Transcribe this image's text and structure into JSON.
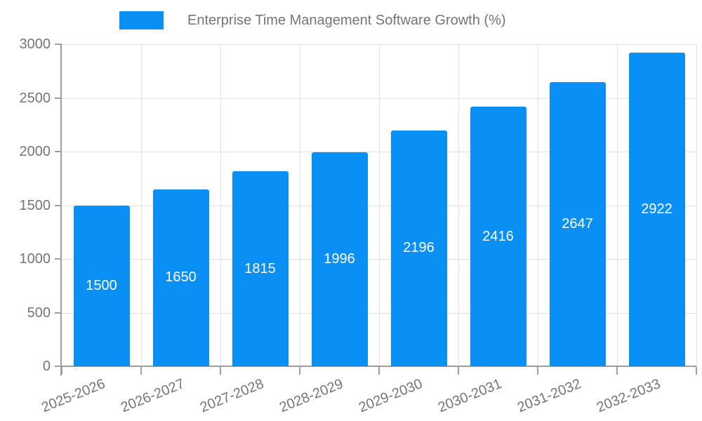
{
  "legend": {
    "label": "Enterprise Time Management Software Growth (%)"
  },
  "chart_data": {
    "type": "bar",
    "title": "Enterprise Time Management Software Growth (%)",
    "categories": [
      "2025-2026",
      "2026-2027",
      "2027-2028",
      "2028-2029",
      "2029-2030",
      "2030-2031",
      "2031-2032",
      "2032-2033"
    ],
    "values": [
      1500,
      1650,
      1815,
      1996,
      2196,
      2416,
      2647,
      2922
    ],
    "xlabel": "",
    "ylabel": "",
    "ylim": [
      0,
      3000
    ],
    "yticks": [
      0,
      500,
      1000,
      1500,
      2000,
      2500,
      3000
    ],
    "grid": true,
    "legend_position": "top-left",
    "value_labels": "inside-center-white",
    "x_label_rotation_deg": -22,
    "colors": {
      "bar": "#0a8ff5",
      "bar_value_text": "#ffffff",
      "axis_text": "#757575",
      "axis_line": "#9e9e9e",
      "gridline": "#e0e0e0",
      "background": "#ffffff"
    }
  }
}
